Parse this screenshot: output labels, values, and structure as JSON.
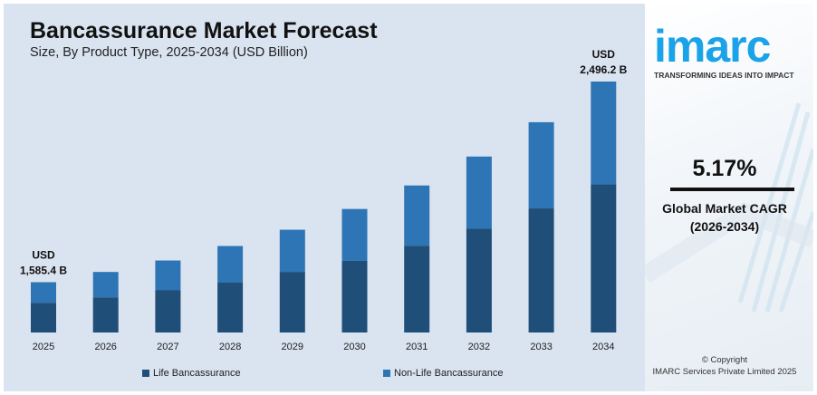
{
  "header": {
    "title": "Bancassurance Market Forecast",
    "subtitle": "Size, By Product Type, 2025-2034 (USD Billion)"
  },
  "chart_data": {
    "type": "bar",
    "stacked": true,
    "title": "Bancassurance Market Forecast",
    "subtitle": "Size, By Product Type, 2025-2034 (USD Billion)",
    "categories": [
      "2025",
      "2026",
      "2027",
      "2028",
      "2029",
      "2030",
      "2031",
      "2032",
      "2033",
      "2034"
    ],
    "totals": [
      1585.4,
      1631.8,
      1683.9,
      1749.5,
      1823.4,
      1917.7,
      2024.4,
      2155.7,
      2311.6,
      2496.2
    ],
    "life_share": [
      0.59,
      0.58,
      0.59,
      0.58,
      0.59,
      0.58,
      0.59,
      0.59,
      0.59,
      0.59
    ],
    "series": [
      {
        "name": "Life Bancassurance",
        "color": "#1f4e79"
      },
      {
        "name": "Non-Life Bancassurance",
        "color": "#2e75b6"
      }
    ],
    "ylim": [
      1357,
      2496.2
    ],
    "grid": false,
    "legend": "bottom",
    "annotations": [
      {
        "category": "2025",
        "line1": "USD",
        "line2": "1,585.4 B"
      },
      {
        "category": "2034",
        "line1": "USD",
        "line2": "2,496.2 B"
      }
    ]
  },
  "sidebar": {
    "logo": "imarc",
    "tagline": "TRANSFORMING IDEAS INTO IMPACT",
    "cagr": "5.17%",
    "cagr_label": "Global Market CAGR",
    "cagr_period": "(2026-2034)",
    "copyright": "© Copyright",
    "company": "IMARC Services Private Limited 2025",
    "brand_color": "#1aa3e8"
  }
}
